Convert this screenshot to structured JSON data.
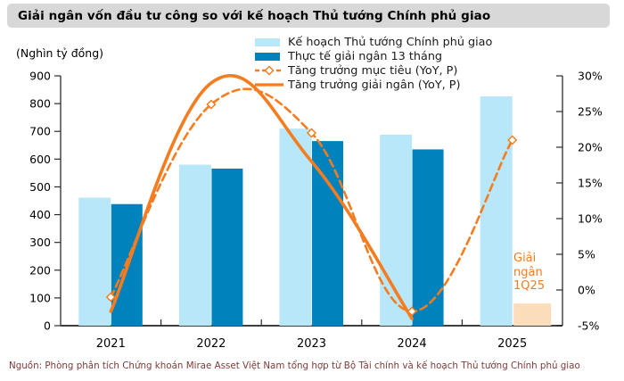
{
  "title": "Giải ngân vốn đầu tư công so với kế hoạch Thủ tướng Chính phủ giao",
  "source": "Nguồn: Phòng phân tích Chứng khoán Mirae Asset Việt Nam tổng hợp từ Bộ Tài chính và kế hoạch Thủ tướng Chính phủ giao",
  "chart_data": {
    "type": "bar",
    "title": "Giải ngân vốn đầu tư công so với kế hoạch Thủ tướng Chính phủ giao",
    "categories": [
      "2021",
      "2022",
      "2023",
      "2024",
      "2025"
    ],
    "y_left": {
      "label": "(Nghìn tỷ đồng)",
      "min": 0,
      "max": 900,
      "step": 100
    },
    "y_right": {
      "label": "",
      "min": -5,
      "max": 30,
      "step": 5,
      "suffix": "%"
    },
    "legend_position": "top",
    "grid": false,
    "series": [
      {
        "name": "Kế hoạch Thủ tướng Chính phủ giao",
        "type": "bar",
        "axis": "left",
        "color": "#b9e7fa",
        "values": [
          461,
          580,
          710,
          688,
          826
        ]
      },
      {
        "name": "Thực tế giải ngân 13 tháng",
        "type": "bar",
        "axis": "left",
        "color": "#0082bc",
        "values": [
          438,
          566,
          665,
          635,
          null
        ]
      },
      {
        "name": "Tăng trưởng mục tiêu (YoY, P)",
        "type": "line",
        "style": "dashed",
        "marker": "diamond",
        "axis": "right",
        "color": "#f57c1f",
        "values": [
          -1,
          26,
          22,
          -3,
          21
        ]
      },
      {
        "name": "Tăng trưởng giải ngân (YoY, P)",
        "type": "line",
        "style": "solid",
        "axis": "right",
        "color": "#f57c1f",
        "values": [
          -3,
          29,
          18,
          -4,
          null
        ]
      }
    ],
    "extra_bar": {
      "label": "Giải ngân 1Q25",
      "category": "2025",
      "color": "#fbdcbb",
      "value": 80
    },
    "axis_color": "#2b2b2b"
  }
}
